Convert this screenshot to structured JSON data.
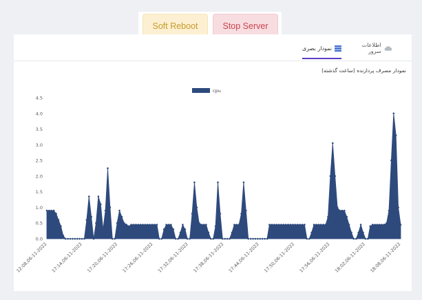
{
  "actions": {
    "soft_reboot_label": "Soft Reboot",
    "stop_server_label": "Stop Server"
  },
  "tabs": [
    {
      "label": "اطلاعات سرور",
      "icon": "cloud-icon"
    },
    {
      "label": "نمودار بصری",
      "icon": "server-icon",
      "active": true
    }
  ],
  "chart": {
    "title": "نمودار مصرف پردازنده (ساعت گذشته)"
  },
  "chart_data": {
    "type": "area",
    "title": "",
    "xlabel": "",
    "ylabel": "",
    "legend": {
      "position": "top-center",
      "entries": [
        "cpu"
      ]
    },
    "ylim": [
      0,
      4.5
    ],
    "yticks": [
      0,
      0.5,
      1.0,
      1.5,
      2.0,
      2.5,
      3.0,
      3.5,
      4.0,
      4.5
    ],
    "xtick_labels": [
      "12:08,06-11-2022",
      "17:14,06-11-2022",
      "17:20,06-11-2022",
      "17:26,06-11-2022",
      "17:32,06-11-2022",
      "17:38,06-11-2022",
      "17:44,06-11-2022",
      "17:50,06-11-2022",
      "17:56,06-11-2022",
      "18:02,06-11-2022",
      "18:08,06-11-2022"
    ],
    "grid": false,
    "series": [
      {
        "name": "cpu",
        "color": "#2e4a7d",
        "values": [
          0.9,
          0.9,
          0.9,
          0.9,
          0.8,
          0.6,
          0.4,
          0.1,
          0,
          0,
          0,
          0,
          0,
          0,
          0,
          0,
          0,
          0.6,
          1.35,
          0.7,
          0,
          0.5,
          1.35,
          1.1,
          0.3,
          0.9,
          2.25,
          1.0,
          0,
          0,
          0.5,
          0.9,
          0.7,
          0.5,
          0.45,
          0.4,
          0.45,
          0.45,
          0.45,
          0.45,
          0.45,
          0.45,
          0.45,
          0.45,
          0.45,
          0.45,
          0.45,
          0.45,
          0,
          0,
          0.3,
          0.45,
          0.45,
          0.45,
          0.3,
          0,
          0,
          0.2,
          0.45,
          0.3,
          0,
          0,
          0.8,
          1.8,
          1.0,
          0.5,
          0.45,
          0.45,
          0.45,
          0.2,
          0,
          0,
          0.4,
          1.8,
          0.8,
          0,
          0,
          0,
          0,
          0.2,
          0.45,
          0.45,
          0.45,
          0.8,
          1.8,
          0.9,
          0,
          0,
          0,
          0,
          0,
          0,
          0,
          0,
          0,
          0.45,
          0.45,
          0.45,
          0.45,
          0.45,
          0.45,
          0.45,
          0.45,
          0.45,
          0.45,
          0.45,
          0.45,
          0.45,
          0.45,
          0.45,
          0.45,
          0,
          0,
          0.2,
          0.45,
          0.45,
          0.45,
          0.45,
          0.45,
          0.45,
          0.7,
          2.0,
          3.05,
          2.0,
          1.0,
          0.9,
          0.9,
          0.9,
          0.7,
          0.45,
          0.2,
          0,
          0,
          0.2,
          0.45,
          0.2,
          0,
          0,
          0.4,
          0.45,
          0.45,
          0.45,
          0.45,
          0.45,
          0.45,
          0.5,
          0.9,
          2.5,
          4.0,
          3.3,
          1.0,
          0.45
        ]
      }
    ]
  }
}
